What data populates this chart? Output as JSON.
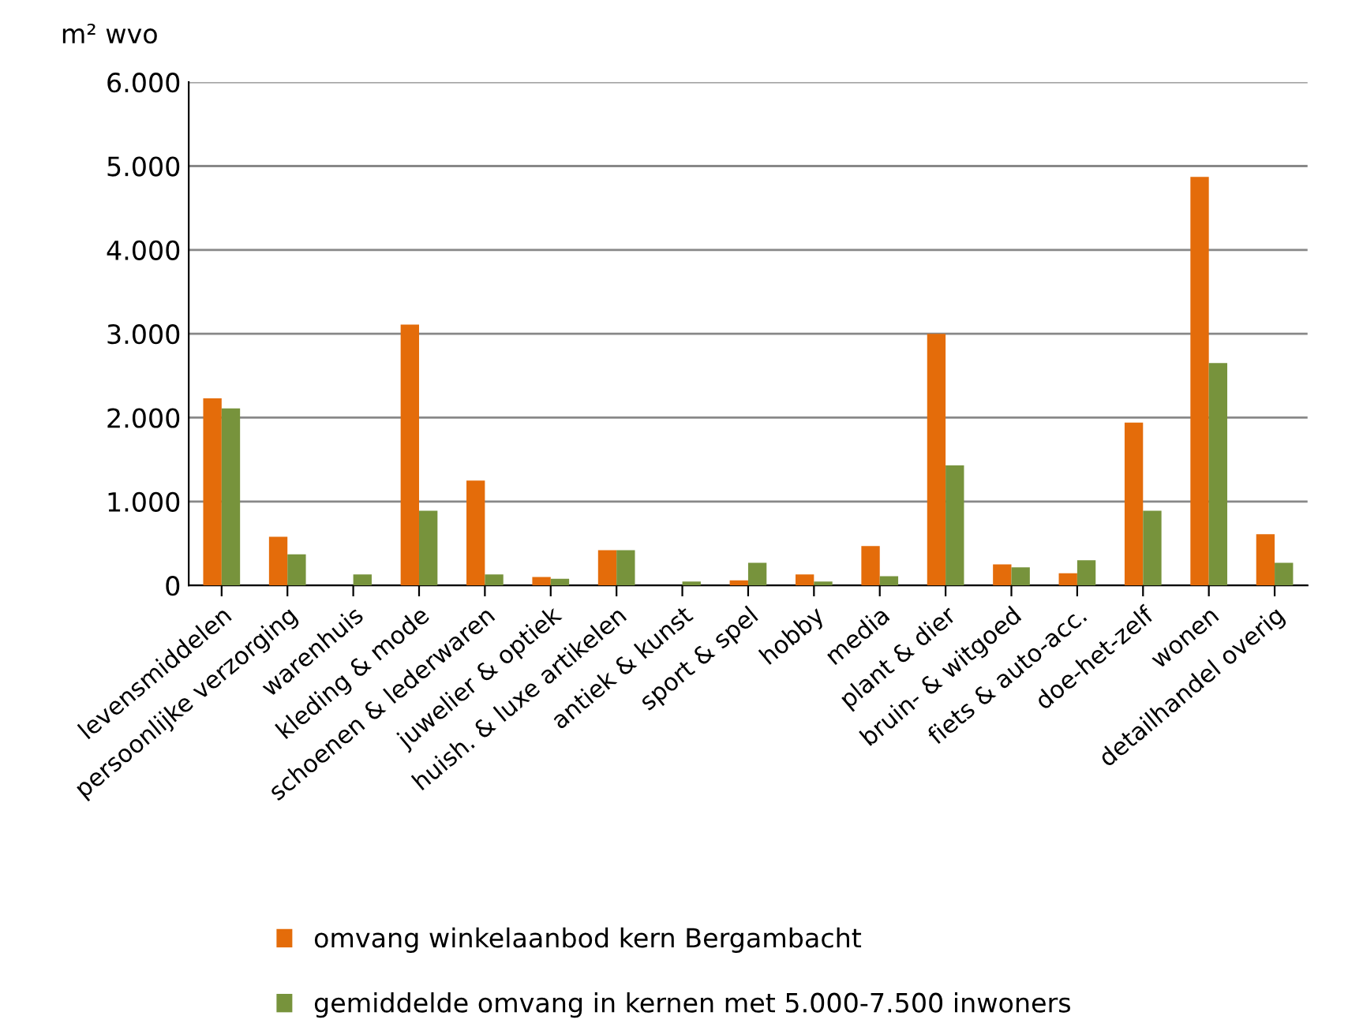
{
  "chart_data": {
    "type": "bar",
    "ylabel": "m² wvo",
    "categories": [
      "levensmiddelen",
      "persoonlijke verzorging",
      "warenhuis",
      "kleding & mode",
      "schoenen & lederwaren",
      "juwelier & optiek",
      "huish. & luxe artikelen",
      "antiek & kunst",
      "sport & spel",
      "hobby",
      "media",
      "plant & dier",
      "bruin- & witgoed",
      "fiets & auto-acc.",
      "doe-het-zelf",
      "wonen",
      "detailhandel overig"
    ],
    "series": [
      {
        "name": "omvang winkelaanbod kern Bergambacht",
        "color": "#e46c0a",
        "values": [
          2230,
          580,
          0,
          3110,
          1250,
          100,
          420,
          0,
          60,
          130,
          470,
          3000,
          250,
          145,
          1940,
          4870,
          610
        ]
      },
      {
        "name": "gemiddelde omvang in kernen met 5.000-7.500 inwoners",
        "color": "#77933c",
        "values": [
          2110,
          370,
          130,
          890,
          130,
          80,
          420,
          45,
          270,
          45,
          110,
          1430,
          215,
          300,
          890,
          2650,
          270
        ]
      }
    ],
    "ylim": [
      0,
      6000
    ],
    "yticks": [
      {
        "value": 0,
        "label": "0"
      },
      {
        "value": 1000,
        "label": "1.000"
      },
      {
        "value": 2000,
        "label": "2.000"
      },
      {
        "value": 3000,
        "label": "3.000"
      },
      {
        "value": 4000,
        "label": "4.000"
      },
      {
        "value": 5000,
        "label": "5.000"
      },
      {
        "value": 6000,
        "label": "6.000"
      }
    ],
    "grid": "y",
    "legend": "bottom"
  }
}
